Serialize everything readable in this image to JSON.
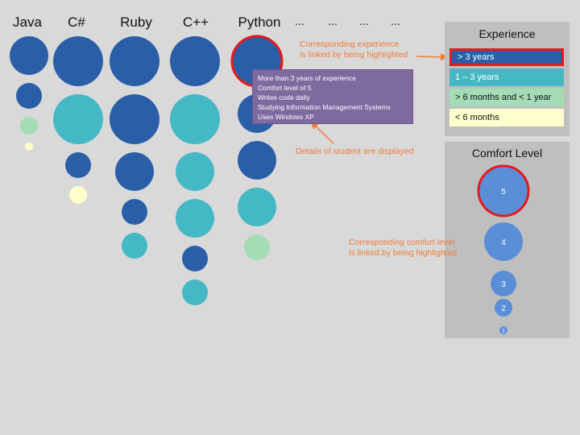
{
  "languages": [
    "Java",
    "C#",
    "Ruby",
    "C++",
    "Python",
    "...",
    "...",
    "...",
    "..."
  ],
  "colors": {
    "gt3": "#2a5fa8",
    "y1_3": "#44b8c4",
    "m6_1y": "#a3dcb5",
    "lt6m": "#ffffcc",
    "comfort": "#5a8fd8",
    "highlight": "#e41a1c",
    "annotation": "#ee7a35",
    "tooltip": "#7f6aa0",
    "panel": "#bfbfbf"
  },
  "experience_panel": {
    "title": "Experience",
    "items": [
      {
        "label": "> 3 years",
        "key": "gt3",
        "highlighted": true
      },
      {
        "label": "1 – 3 years",
        "key": "y1_3",
        "highlighted": false
      },
      {
        "label": "> 6 months and < 1 year",
        "key": "m6_1y",
        "highlighted": false
      },
      {
        "label": "< 6 months",
        "key": "lt6m",
        "highlighted": false
      }
    ]
  },
  "comfort_panel": {
    "title": "Comfort Level",
    "levels": [
      {
        "label": "5",
        "highlighted": true
      },
      {
        "label": "4",
        "highlighted": false
      },
      {
        "label": "3",
        "highlighted": false
      },
      {
        "label": "2",
        "highlighted": false
      },
      {
        "label": "1",
        "highlighted": false
      }
    ]
  },
  "tooltip": {
    "lines": [
      "More than 3 years of experience",
      "Comfort level of 5",
      "Writes code daily",
      "Studying Information Management Systems",
      "Uses Windows XP"
    ]
  },
  "annotations": {
    "experience": [
      "Corresponding experience",
      "is linked by being highlighted"
    ],
    "details": "Details of student are displayed",
    "comfort": [
      "Corresponding comfort level",
      "is linked by being highlighted"
    ]
  },
  "chart_data": {
    "type": "bubble-columns",
    "columns": [
      {
        "language": "Java",
        "bubbles": [
          {
            "experience": "gt3",
            "comfort": 4
          },
          {
            "experience": "gt3",
            "comfort": 3
          },
          {
            "experience": "m6_1y",
            "comfort": 2
          },
          {
            "experience": "lt6m",
            "comfort": 1
          }
        ]
      },
      {
        "language": "C#",
        "bubbles": [
          {
            "experience": "gt3",
            "comfort": 5
          },
          {
            "experience": "y1_3",
            "comfort": 5
          },
          {
            "experience": "gt3",
            "comfort": 3
          },
          {
            "experience": "lt6m",
            "comfort": 2
          }
        ]
      },
      {
        "language": "Ruby",
        "bubbles": [
          {
            "experience": "gt3",
            "comfort": 5
          },
          {
            "experience": "gt3",
            "comfort": 5
          },
          {
            "experience": "gt3",
            "comfort": 4
          },
          {
            "experience": "gt3",
            "comfort": 3
          },
          {
            "experience": "y1_3",
            "comfort": 3
          }
        ]
      },
      {
        "language": "C++",
        "bubbles": [
          {
            "experience": "gt3",
            "comfort": 5
          },
          {
            "experience": "y1_3",
            "comfort": 5
          },
          {
            "experience": "y1_3",
            "comfort": 4
          },
          {
            "experience": "y1_3",
            "comfort": 4
          },
          {
            "experience": "gt3",
            "comfort": 3
          },
          {
            "experience": "y1_3",
            "comfort": 3
          }
        ]
      },
      {
        "language": "Python",
        "bubbles": [
          {
            "experience": "gt3",
            "comfort": 5,
            "highlighted": true
          },
          {
            "experience": "gt3",
            "comfort": 4
          },
          {
            "experience": "gt3",
            "comfort": 4
          },
          {
            "experience": "y1_3",
            "comfort": 4
          },
          {
            "experience": "m6_1y",
            "comfort": 3
          }
        ]
      }
    ]
  }
}
